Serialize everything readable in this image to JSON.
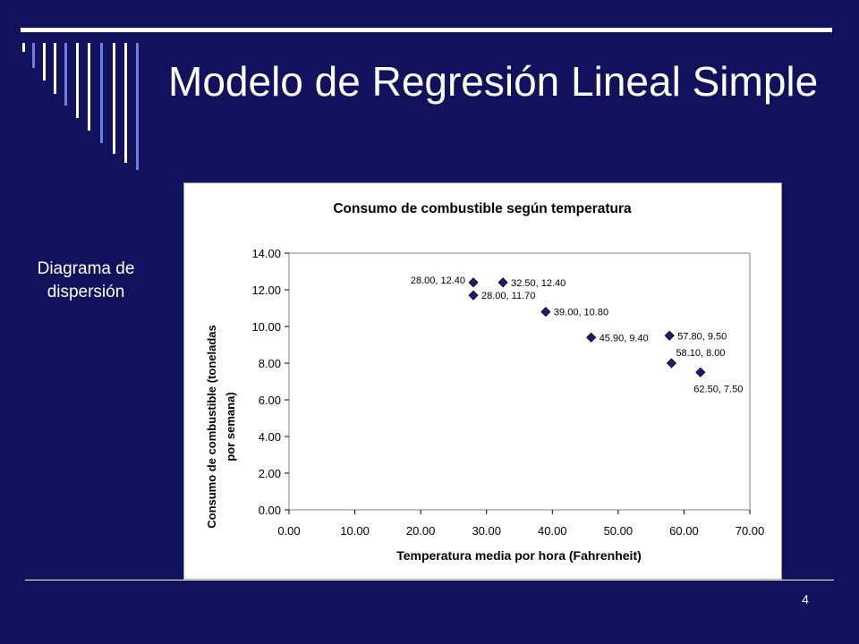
{
  "slide": {
    "title": "Modelo de Regresión Lineal Simple",
    "side_label": "Diagrama de dispersión",
    "page_number": "4"
  },
  "colors": {
    "background": "#11115e",
    "accent": "#ffffff",
    "deco_blue": "#6b7fe0",
    "marker": "#1a1a7a",
    "plot_border": "#808080"
  },
  "chart_data": {
    "type": "scatter",
    "title": "Consumo de combustible según temperatura",
    "xlabel": "Temperatura media por hora (Fahrenheit)",
    "ylabel_lines": [
      "Consumo de combustible (toneladas",
      "por semana)"
    ],
    "xlim": [
      0,
      70
    ],
    "ylim": [
      0,
      14
    ],
    "x_ticks": [
      "0.00",
      "10.00",
      "20.00",
      "30.00",
      "40.00",
      "50.00",
      "60.00",
      "70.00"
    ],
    "y_ticks": [
      "0.00",
      "2.00",
      "4.00",
      "6.00",
      "8.00",
      "10.00",
      "12.00",
      "14.00"
    ],
    "grid": false,
    "marker": "diamond",
    "points": [
      {
        "x": 28.0,
        "y": 12.4,
        "label": "28.00, 12.40",
        "label_pos": "left"
      },
      {
        "x": 28.0,
        "y": 11.7,
        "label": "28.00, 11.70",
        "label_pos": "right"
      },
      {
        "x": 32.5,
        "y": 12.4,
        "label": "32.50, 12.40",
        "label_pos": "right"
      },
      {
        "x": 39.0,
        "y": 10.8,
        "label": "39.00, 10.80",
        "label_pos": "right"
      },
      {
        "x": 45.9,
        "y": 9.4,
        "label": "45.90, 9.40",
        "label_pos": "right"
      },
      {
        "x": 57.8,
        "y": 9.5,
        "label": "57.80, 9.50",
        "label_pos": "right"
      },
      {
        "x": 58.1,
        "y": 8.0,
        "label": "58.10, 8.00",
        "label_pos": "above-right"
      },
      {
        "x": 62.5,
        "y": 7.5,
        "label": "62.50, 7.50",
        "label_pos": "below"
      }
    ]
  }
}
